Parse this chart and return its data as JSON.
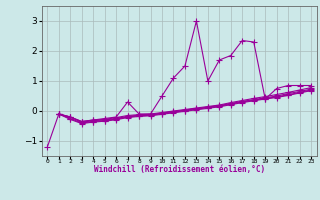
{
  "xlabel": "Windchill (Refroidissement éolien,°C)",
  "x_values": [
    0,
    1,
    2,
    3,
    4,
    5,
    6,
    7,
    8,
    9,
    10,
    11,
    12,
    13,
    14,
    15,
    16,
    17,
    18,
    19,
    20,
    21,
    22,
    23
  ],
  "series1": [
    -1.2,
    -0.1,
    -0.2,
    -0.35,
    -0.3,
    -0.25,
    -0.2,
    0.3,
    -0.1,
    -0.1,
    0.5,
    1.1,
    1.5,
    3.0,
    1.0,
    1.7,
    1.85,
    2.35,
    2.3,
    0.4,
    0.75,
    0.85,
    0.85,
    0.85
  ],
  "series2": [
    null,
    -0.1,
    -0.2,
    -0.35,
    -0.3,
    -0.28,
    -0.22,
    -0.15,
    -0.12,
    -0.1,
    -0.05,
    0.0,
    0.05,
    0.1,
    0.15,
    0.2,
    0.28,
    0.35,
    0.42,
    0.48,
    0.55,
    0.62,
    0.7,
    0.78
  ],
  "series3": [
    null,
    -0.1,
    -0.2,
    -0.38,
    -0.32,
    -0.3,
    -0.25,
    -0.18,
    -0.14,
    -0.12,
    -0.07,
    -0.02,
    0.03,
    0.08,
    0.13,
    0.18,
    0.25,
    0.32,
    0.38,
    0.44,
    0.5,
    0.58,
    0.65,
    0.73
  ],
  "series4": [
    null,
    -0.1,
    -0.25,
    -0.4,
    -0.35,
    -0.32,
    -0.27,
    -0.2,
    -0.16,
    -0.14,
    -0.09,
    -0.04,
    0.01,
    0.06,
    0.11,
    0.16,
    0.23,
    0.3,
    0.36,
    0.42,
    0.47,
    0.54,
    0.62,
    0.7
  ],
  "series5": [
    null,
    -0.1,
    -0.28,
    -0.42,
    -0.37,
    -0.34,
    -0.29,
    -0.22,
    -0.18,
    -0.16,
    -0.11,
    -0.06,
    -0.01,
    0.04,
    0.09,
    0.14,
    0.21,
    0.28,
    0.34,
    0.4,
    0.45,
    0.52,
    0.6,
    0.68
  ],
  "line_color": "#990099",
  "bg_color": "#cce8e8",
  "grid_color": "#aabbbb",
  "ylim": [
    -1.5,
    3.5
  ],
  "yticks": [
    -1,
    0,
    1,
    2,
    3
  ],
  "marker": "+",
  "markersize": 4,
  "linewidth": 0.8
}
